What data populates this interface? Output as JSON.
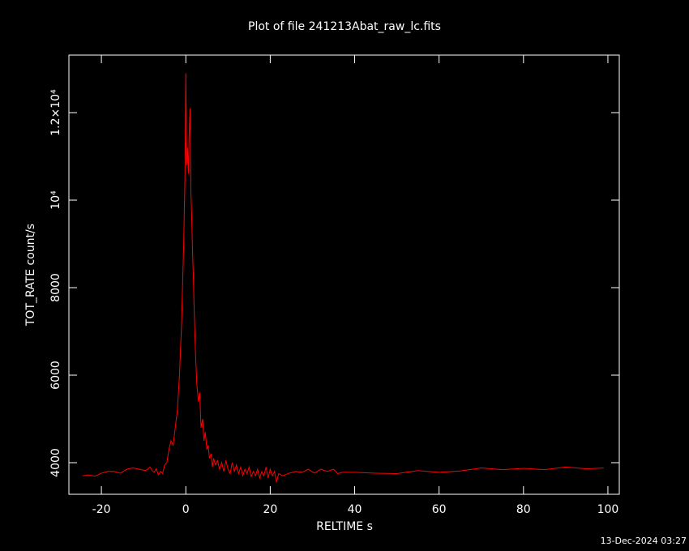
{
  "chart_data": {
    "type": "line",
    "title": "Plot of file 241213Abat_raw_lc.fits",
    "xlabel": "RELTIME  s",
    "ylabel": "TOT_RATE  count/s",
    "timestamp": "13-Dec-2024 03:27",
    "color": "#ff0000",
    "xlim": [
      -27.7,
      102.7
    ],
    "ylim": [
      3278,
      13315
    ],
    "xticks": [
      -20,
      0,
      20,
      40,
      60,
      80,
      100
    ],
    "yticks": [
      4000,
      6000,
      8000,
      {
        "value": 10000,
        "label": "10⁴"
      },
      {
        "value": 12000,
        "label": "1.2×10⁴"
      }
    ],
    "x": [
      -24.5,
      -23,
      -21.5,
      -20,
      -18.5,
      -17,
      -15.5,
      -14,
      -12.5,
      -11,
      -9.5,
      -8.5,
      -8,
      -7.5,
      -7,
      -6.5,
      -6,
      -5.5,
      -5,
      -4.5,
      -4,
      -3.5,
      -3,
      -2.5,
      -2,
      -1.5,
      -1,
      -0.5,
      -0.2,
      0,
      0.2,
      0.4,
      0.6,
      0.8,
      1,
      1.2,
      1.4,
      1.6,
      1.8,
      2,
      2.3,
      2.6,
      3,
      3.3,
      3.6,
      4,
      4.3,
      4.6,
      5,
      5.3,
      5.6,
      6,
      6.3,
      6.6,
      7,
      7.5,
      8,
      8.5,
      9,
      9.5,
      10,
      10.5,
      11,
      11.5,
      12,
      12.5,
      13,
      13.5,
      14,
      14.5,
      15,
      15.5,
      16,
      16.5,
      17,
      17.5,
      18,
      18.5,
      19,
      19.5,
      20,
      20.5,
      21,
      21.5,
      22,
      23,
      24.5,
      26,
      27.5,
      29,
      30.5,
      32,
      33.5,
      35,
      36,
      37,
      40,
      45,
      50,
      55,
      60,
      65,
      70,
      75,
      80,
      85,
      90,
      95,
      99
    ],
    "values": [
      3700,
      3720,
      3690,
      3760,
      3800,
      3800,
      3760,
      3850,
      3880,
      3850,
      3820,
      3900,
      3820,
      3780,
      3860,
      3720,
      3800,
      3750,
      3950,
      4000,
      4300,
      4500,
      4400,
      4800,
      5200,
      6000,
      7200,
      9000,
      10500,
      12900,
      10800,
      11200,
      10600,
      11500,
      12100,
      10200,
      9600,
      8800,
      8200,
      7400,
      6500,
      5800,
      5400,
      5600,
      4800,
      5000,
      4500,
      4700,
      4300,
      4400,
      4100,
      4200,
      3900,
      4100,
      3950,
      4050,
      3850,
      4000,
      3800,
      4050,
      3850,
      3750,
      4000,
      3800,
      3950,
      3750,
      3900,
      3700,
      3850,
      3750,
      3900,
      3680,
      3800,
      3700,
      3850,
      3650,
      3800,
      3700,
      3900,
      3650,
      3850,
      3700,
      3800,
      3550,
      3750,
      3700,
      3760,
      3800,
      3780,
      3850,
      3760,
      3850,
      3800,
      3850,
      3750,
      3780,
      3780,
      3760,
      3750,
      3820,
      3780,
      3810,
      3880,
      3840,
      3870,
      3840,
      3900,
      3860,
      3880
    ]
  }
}
